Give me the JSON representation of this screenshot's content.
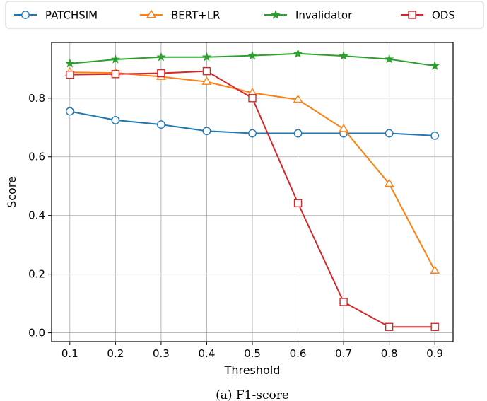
{
  "chart_data": {
    "type": "line",
    "x": [
      0.1,
      0.2,
      0.3,
      0.4,
      0.5,
      0.6,
      0.7,
      0.8,
      0.9
    ],
    "series": [
      {
        "name": "PATCHSIM",
        "color": "#1f77b4",
        "marker": "circle",
        "values": [
          0.755,
          0.725,
          0.71,
          0.688,
          0.68,
          0.68,
          0.68,
          0.68,
          0.672
        ]
      },
      {
        "name": "BERT+LR",
        "color": "#ff7f0e",
        "marker": "triangle",
        "values": [
          0.888,
          0.886,
          0.873,
          0.856,
          0.818,
          0.795,
          0.695,
          0.508,
          0.212
        ]
      },
      {
        "name": "Invalidator",
        "color": "#2ca02c",
        "marker": "star",
        "values": [
          0.918,
          0.932,
          0.94,
          0.94,
          0.945,
          0.952,
          0.944,
          0.933,
          0.91
        ]
      },
      {
        "name": "ODS",
        "color": "#d62728",
        "marker": "square",
        "values": [
          0.88,
          0.882,
          0.885,
          0.892,
          0.8,
          0.442,
          0.105,
          0.02,
          0.02
        ]
      }
    ],
    "xlabel": "Threshold",
    "ylabel": "Score",
    "xlim": [
      0.06,
      0.94
    ],
    "ylim": [
      -0.03,
      0.99
    ],
    "xticks": [
      0.1,
      0.2,
      0.3,
      0.4,
      0.5,
      0.6,
      0.7,
      0.8,
      0.9
    ],
    "yticks": [
      0.0,
      0.2,
      0.4,
      0.6,
      0.8
    ],
    "grid": true,
    "legend_position": "top",
    "caption": "(a) F1-score"
  }
}
